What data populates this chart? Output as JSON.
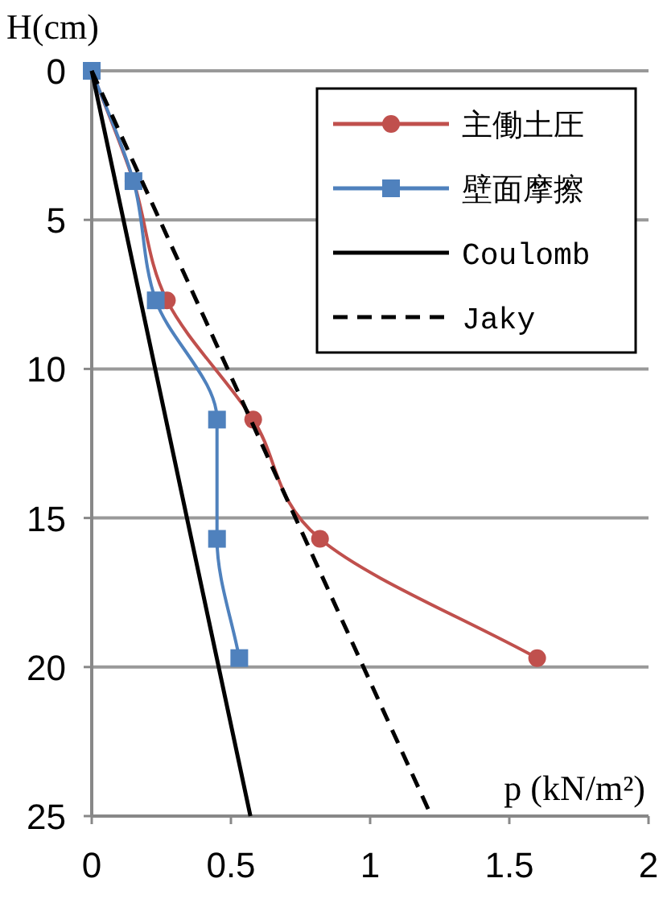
{
  "chart_data": {
    "type": "line",
    "xlabel": "p (kN/m²)",
    "ylabel": "H(cm)",
    "xlim": [
      0,
      2
    ],
    "xticks": [
      0,
      0.5,
      1,
      1.5,
      2
    ],
    "ylim": [
      25,
      0
    ],
    "yticks": [
      0,
      5,
      10,
      15,
      20,
      25
    ],
    "grid": "y",
    "legend": "top right",
    "series": [
      {
        "name": "主働土圧",
        "color": "#c0504d",
        "marker": "circle",
        "line_style": "solid",
        "x": [
          0,
          0.15,
          0.27,
          0.58,
          0.82,
          1.6
        ],
        "values": [
          0,
          3.7,
          7.7,
          11.7,
          15.7,
          19.7
        ]
      },
      {
        "name": "壁面摩擦",
        "color": "#4f81bd",
        "marker": "square",
        "line_style": "solid",
        "x": [
          0,
          0.15,
          0.23,
          0.45,
          0.45,
          0.53
        ],
        "values": [
          0,
          3.7,
          7.7,
          11.7,
          15.7,
          19.7
        ]
      },
      {
        "name": "Coulomb",
        "color": "#000000",
        "marker": "none",
        "line_style": "solid",
        "x": [
          0,
          0.57
        ],
        "values": [
          0,
          25
        ]
      },
      {
        "name": "Jaky",
        "color": "#000000",
        "marker": "none",
        "line_style": "dashed",
        "x": [
          0,
          1.22
        ],
        "values": [
          0,
          25
        ]
      }
    ]
  }
}
